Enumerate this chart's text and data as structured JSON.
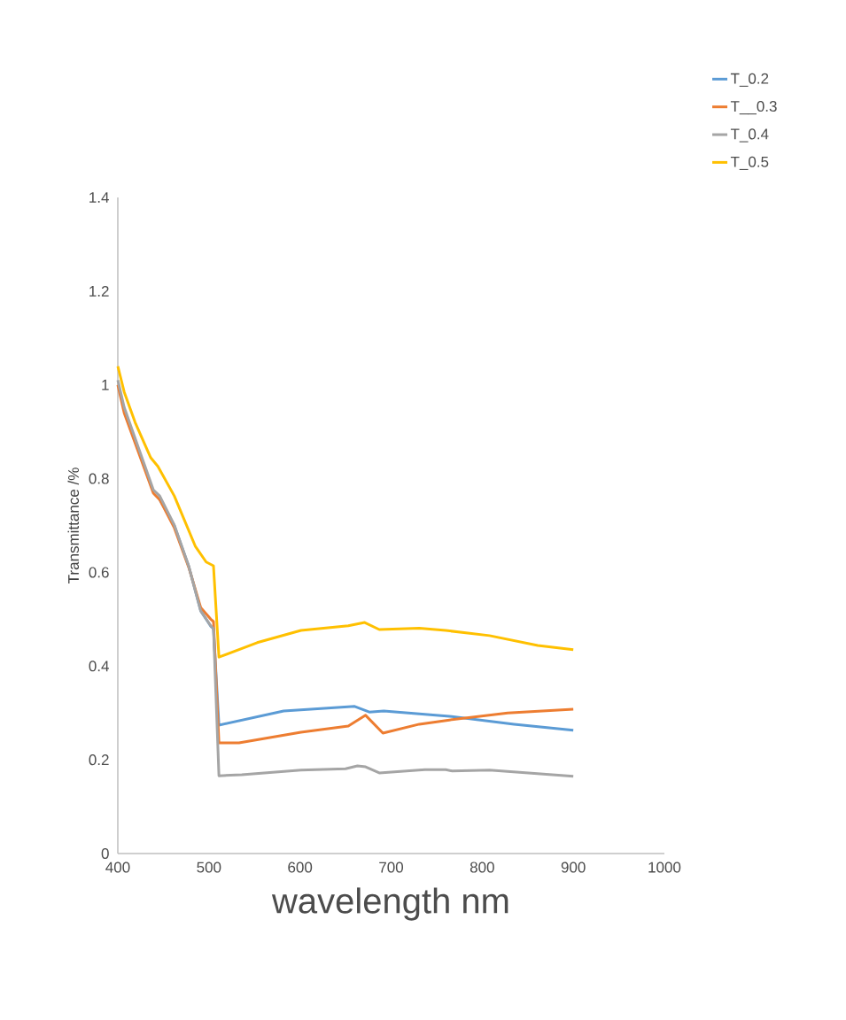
{
  "chart_data": {
    "type": "line",
    "xlabel": "wavelength nm",
    "ylabel": "Transmittance /%",
    "xlim": [
      400,
      1000
    ],
    "xticks": [
      400,
      500,
      600,
      700,
      800,
      900,
      1000
    ],
    "ylim": [
      0,
      1.4
    ],
    "yticks": [
      0,
      0.2,
      0.4,
      0.6,
      0.8,
      1,
      1.2,
      1.4
    ],
    "legend": "top right",
    "grid": false,
    "series": [
      {
        "name": "T_0.2",
        "color": "#5b9bd5",
        "x": [
          446,
          462,
          478,
          491,
          502,
          505,
          511,
          582,
          660,
          676,
          692,
          764,
          835,
          900
        ],
        "values": [
          0.755,
          0.7,
          0.612,
          0.518,
          0.485,
          0.48,
          0.274,
          0.304,
          0.314,
          0.302,
          0.304,
          0.293,
          0.276,
          0.263
        ]
      },
      {
        "name": "T__0.3",
        "color": "#ed7d31",
        "x": [
          400,
          407,
          439,
          446,
          462,
          478,
          491,
          502,
          505,
          511,
          533,
          601,
          653,
          672,
          691,
          731,
          764,
          828,
          900
        ],
        "values": [
          1.0,
          0.94,
          0.769,
          0.755,
          0.695,
          0.61,
          0.525,
          0.5,
          0.495,
          0.236,
          0.236,
          0.259,
          0.272,
          0.295,
          0.257,
          0.276,
          0.285,
          0.3,
          0.308
        ]
      },
      {
        "name": "T_0.4",
        "color": "#a5a5a5",
        "x": [
          400,
          407,
          439,
          446,
          462,
          478,
          491,
          502,
          505,
          511,
          536,
          601,
          650,
          663,
          672,
          687,
          737,
          760,
          767,
          808,
          900
        ],
        "values": [
          1.01,
          0.952,
          0.776,
          0.763,
          0.701,
          0.612,
          0.518,
          0.486,
          0.48,
          0.166,
          0.168,
          0.178,
          0.181,
          0.187,
          0.185,
          0.172,
          0.179,
          0.179,
          0.176,
          0.178,
          0.165
        ]
      },
      {
        "name": "T_0.5",
        "color": "#ffc000",
        "x": [
          400,
          407,
          419,
          436,
          444,
          462,
          485,
          497,
          505,
          511,
          553,
          601,
          653,
          671,
          687,
          731,
          760,
          808,
          861,
          900
        ],
        "values": [
          1.04,
          0.985,
          0.92,
          0.845,
          0.826,
          0.763,
          0.656,
          0.622,
          0.614,
          0.419,
          0.45,
          0.476,
          0.486,
          0.493,
          0.478,
          0.481,
          0.476,
          0.465,
          0.444,
          0.435
        ]
      }
    ]
  }
}
